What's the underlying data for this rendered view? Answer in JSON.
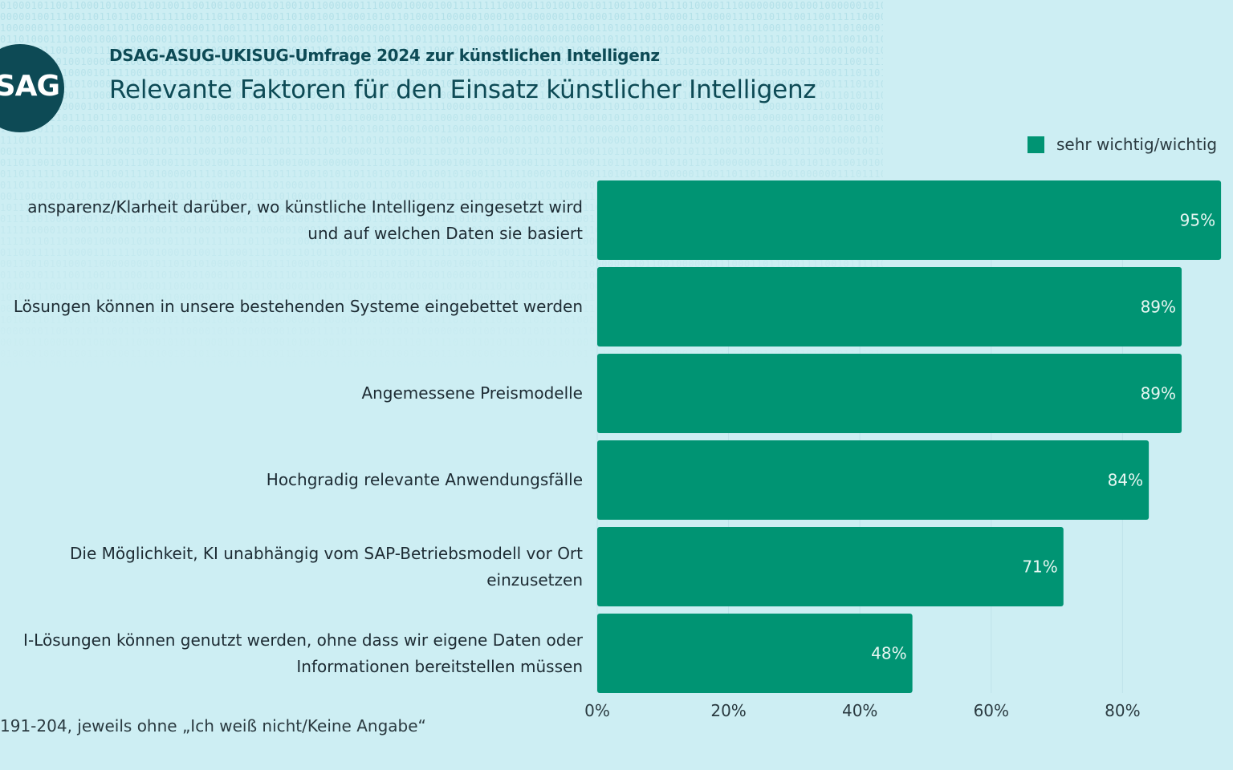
{
  "header": {
    "logo_text": "DSAG",
    "supertitle": "DSAG-ASUG-UKISUG-Umfrage 2024 zur künstlichen Intelligenz",
    "title": "Relevante Faktoren für den Einsatz künstlicher Intelligenz"
  },
  "footnote": "191-204, jeweils ohne „Ich weiß nicht/Keine Angabe“",
  "colors": {
    "bar": "#009473",
    "title": "#0d4a55",
    "background": "#cdeef3"
  },
  "chart_data": {
    "type": "bar",
    "orientation": "horizontal",
    "categories": [
      [
        "ansparenz/Klarheit darüber, wo künstliche Intelligenz eingesetzt wird",
        "und auf welchen Daten sie basiert"
      ],
      [
        "Lösungen können in unsere bestehenden Systeme eingebettet werden"
      ],
      [
        "Angemessene Preismodelle"
      ],
      [
        "Hochgradig relevante Anwendungsfälle"
      ],
      [
        "Die Möglichkeit, KI unabhängig vom SAP-Betriebsmodell vor Ort",
        "einzusetzen"
      ],
      [
        "I-Lösungen können genutzt werden, ohne dass wir eigene Daten oder",
        "Informationen bereitstellen müssen"
      ]
    ],
    "series": [
      {
        "name": "sehr wichtig/wichtig",
        "values": [
          95,
          89,
          89,
          84,
          71,
          48
        ],
        "labels": [
          "95%",
          "89%",
          "89%",
          "84%",
          "71%",
          "48%"
        ]
      }
    ],
    "xlim": [
      0,
      100
    ],
    "xticks": [
      0,
      20,
      40,
      60,
      80
    ],
    "xtick_labels": [
      "0%",
      "20%",
      "40%",
      "60%",
      "80%"
    ],
    "grid": true,
    "legend": "top-right"
  }
}
